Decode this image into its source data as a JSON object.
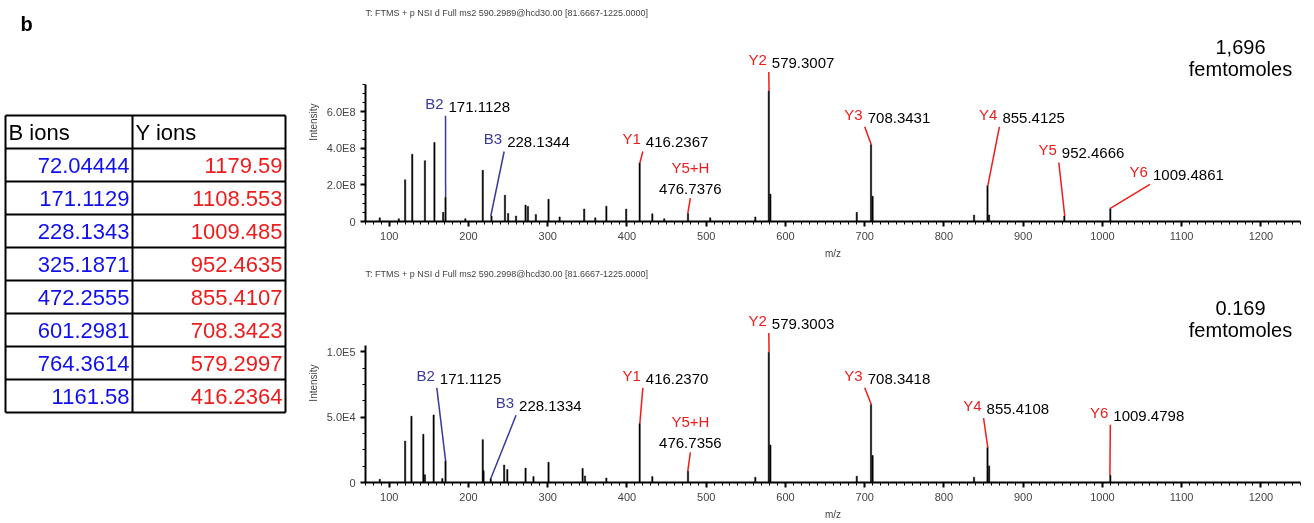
{
  "chart_data": [
    {
      "type": "other",
      "annotations": [
        "b",
        "B ions",
        "Y ions",
        "72.04444",
        "1179.59",
        "171.1129",
        "1108.553",
        "228.1343",
        "1009.485",
        "325.1871",
        "952.4635",
        "472.2555",
        "855.4107",
        "601.2981",
        "708.3423",
        "764.3614",
        "579.2997",
        "1161.58",
        "416.2364"
      ]
    },
    {
      "type": "bar",
      "title": "T: FTMS + p NSI d Full ms2 590.2989@hcd30.00 [81.6667-1225.0000]",
      "xlabel": "m/z",
      "ylabel": "Intensity",
      "x": [
        88,
        112,
        120,
        129,
        145,
        157,
        168,
        171,
        196,
        218,
        229,
        246,
        250,
        260,
        272,
        275,
        285,
        301,
        315,
        346,
        360,
        374,
        399,
        416,
        432,
        447,
        477,
        505,
        562,
        579,
        581,
        690,
        708,
        710,
        838,
        855,
        857,
        952,
        1010
      ],
      "series": [
        {
          "color": "#000000",
          "values": [
            20000000,
            15000000,
            228000000,
            368000000,
            332000000,
            432000000,
            50000000,
            132000000,
            15000000,
            280000000,
            30000000,
            144000000,
            44000000,
            30000000,
            90000000,
            82000000,
            38000000,
            122000000,
            25000000,
            68000000,
            20000000,
            84000000,
            68000000,
            320000000,
            42000000,
            15000000,
            44000000,
            20000000,
            25000000,
            714000000,
            150000000,
            50000000,
            420000000,
            138000000,
            35000000,
            196000000,
            35000000,
            30000000,
            70000000
          ]
        }
      ],
      "xlim": [
        70,
        1250
      ],
      "ylim": [
        0,
        750000000
      ],
      "xticks": [
        100,
        200,
        300,
        400,
        500,
        600,
        700,
        800,
        900,
        1000,
        1100,
        1200
      ],
      "yticks": [
        {
          "value": 0,
          "label": "0"
        },
        {
          "value": 200000000,
          "label": "2.0E8"
        },
        {
          "value": 400000000,
          "label": "4.0E8"
        },
        {
          "value": 600000000,
          "label": "6.0E8"
        }
      ],
      "annotations": [
        {
          "text": "B2 171.1128",
          "x": 171.1128,
          "y": 132000000
        },
        {
          "text": "B3 228.1344",
          "x": 228.1344,
          "y": 30000000
        },
        {
          "text": "Y1 416.2367",
          "x": 416.2367,
          "y": 320000000
        },
        {
          "text": "Y5+H\n476.7376",
          "x": 476.7376,
          "y": 44000000
        },
        {
          "text": "Y2 579.3007",
          "x": 579.3007,
          "y": 714000000
        },
        {
          "text": "Y3 708.3431",
          "x": 708.3431,
          "y": 420000000
        },
        {
          "text": "Y4 855.4125",
          "x": 855.4125,
          "y": 196000000
        },
        {
          "text": "Y5 952.4666",
          "x": 952.4666,
          "y": 30000000
        },
        {
          "text": "Y6 1009.4861",
          "x": 1009.4861,
          "y": 70000000
        },
        "1,696\nfemtomoles"
      ]
    },
    {
      "type": "bar",
      "title": "T: FTMS + p NSI d Full ms2 590.2998@hcd30.00 [81.6667-1225.0000]",
      "xlabel": "m/z",
      "ylabel": "Intensity",
      "x": [
        88,
        120,
        128,
        143,
        145,
        156,
        167,
        171,
        218,
        219,
        228,
        245,
        249,
        272,
        282,
        301,
        344,
        347,
        374,
        416,
        432,
        477,
        562,
        579,
        581,
        690,
        708,
        710,
        838,
        855,
        857,
        1010
      ],
      "series": [
        {
          "color": "#000000",
          "values": [
            2400,
            31700,
            50700,
            36900,
            6000,
            51700,
            3000,
            16600,
            32800,
            9000,
            3000,
            13400,
            10000,
            11000,
            4500,
            15500,
            10700,
            5000,
            3400,
            45200,
            4500,
            8700,
            4000,
            99600,
            28700,
            4800,
            59700,
            20700,
            4000,
            26700,
            12700,
            5600
          ]
        }
      ],
      "xlim": [
        70,
        1250
      ],
      "ylim": [
        0,
        105000
      ],
      "xticks": [
        100,
        200,
        300,
        400,
        500,
        600,
        700,
        800,
        900,
        1000,
        1100,
        1200
      ],
      "yticks": [
        {
          "value": 0,
          "label": "0"
        },
        {
          "value": 50000,
          "label": "5.0E4"
        },
        {
          "value": 100000,
          "label": "1.0E5"
        }
      ],
      "annotations": [
        {
          "text": "B2 171.1125",
          "x": 171.1125,
          "y": 16600
        },
        {
          "text": "B3 228.1334",
          "x": 228.1334,
          "y": 3000
        },
        {
          "text": "Y1 416.2370",
          "x": 416.237,
          "y": 45200
        },
        {
          "text": "Y5+H\n476.7356",
          "x": 476.7356,
          "y": 8700
        },
        {
          "text": "Y2 579.3003",
          "x": 579.3003,
          "y": 99600
        },
        {
          "text": "Y3 708.3418",
          "x": 708.3418,
          "y": 59700
        },
        {
          "text": "Y4 855.4108",
          "x": 855.4108,
          "y": 26700
        },
        {
          "text": "Y6 1009.4798",
          "x": 1009.4798,
          "y": 5600
        },
        "0.169\nfemtomoles"
      ]
    }
  ]
}
